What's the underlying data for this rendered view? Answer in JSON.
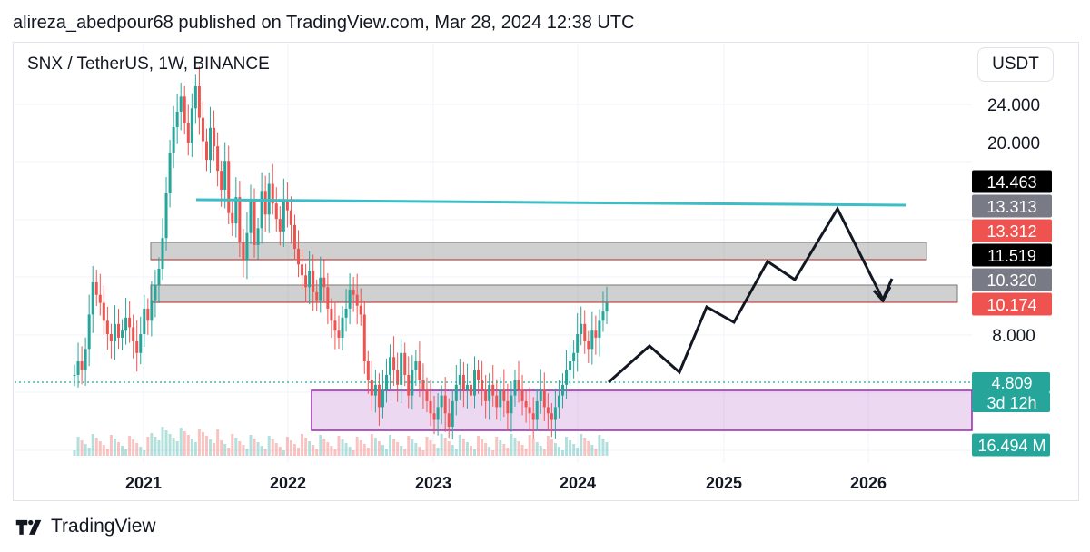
{
  "header": {
    "text": "alireza_abedpour68 published on TradingView.com, Mar 28, 2024 12:38 UTC"
  },
  "symbol": {
    "text": "SNX / TetherUS, 1W, BINANCE"
  },
  "currency": {
    "label": "USDT"
  },
  "footer": {
    "brand": "TradingView",
    "logo_icon": "tradingview-logo-icon"
  },
  "colors": {
    "up": "#26a69a",
    "down": "#ef5350",
    "teal_line": "#3dbdc6",
    "purple_zone": "#9c27b0",
    "grey_zone": "#9e9e9e",
    "projection": "#131722"
  },
  "chart_data": {
    "type": "candlestick",
    "y_scale": "log",
    "ylim": [
      4.0,
      30.0
    ],
    "y_ticks": [
      "24.000",
      "20.000",
      "8.000"
    ],
    "y_tick_values": [
      24,
      20,
      8
    ],
    "x_ticks": [
      "2021",
      "2022",
      "2023",
      "2024",
      "2025",
      "2026"
    ],
    "price_labels": [
      {
        "text": "14.463",
        "value": 14.463,
        "bg": "#000000",
        "fg": "#ffffff"
      },
      {
        "text": "13.313",
        "value": 13.313,
        "bg": "#787b86",
        "fg": "#ffffff"
      },
      {
        "text": "13.312",
        "value": 13.312,
        "bg": "#ef5350",
        "fg": "#ffffff"
      },
      {
        "text": "11.519",
        "value": 11.519,
        "bg": "#000000",
        "fg": "#ffffff"
      },
      {
        "text": "10.320",
        "value": 10.32,
        "bg": "#787b86",
        "fg": "#ffffff"
      },
      {
        "text": "10.174",
        "value": 10.174,
        "bg": "#ef5350",
        "fg": "#ffffff"
      },
      {
        "text": "4.809",
        "value": 4.809,
        "bg": "#26a69a",
        "fg": "#ffffff"
      },
      {
        "text": "3d 12h",
        "value": null,
        "bg": "#26a69a",
        "fg": "#ffffff"
      },
      {
        "text": "16.494 M",
        "value": null,
        "bg": "#26a69a",
        "fg": "#ffffff"
      }
    ],
    "current_price": 4.809,
    "resistance_line": {
      "value": 13.5,
      "color": "#3dbdc6"
    },
    "zones": [
      {
        "name": "upper-supply",
        "low": 11.5,
        "high": 12.3,
        "color": "#9e9e9e"
      },
      {
        "name": "lower-supply",
        "low": 9.8,
        "high": 10.5,
        "color": "#9e9e9e"
      },
      {
        "name": "accumulation",
        "low": 3.5,
        "high": 4.7,
        "color": "#9c27b0"
      }
    ],
    "projection_path": [
      [
        "2024-03",
        4.8
      ],
      [
        "2024-06",
        6.3
      ],
      [
        "2024-09",
        5.2
      ],
      [
        "2024-12",
        8.9
      ],
      [
        "2025-03",
        7.6
      ],
      [
        "2025-06",
        12.4
      ],
      [
        "2025-09",
        11.3
      ],
      [
        "2025-12",
        14.0
      ],
      [
        "2026-03",
        10.2
      ],
      [
        "2026-04",
        11.2
      ]
    ],
    "candles_close": [
      2.8,
      3.1,
      2.9,
      3.4,
      4.4,
      5.6,
      5.1,
      4.8,
      4.2,
      3.8,
      3.6,
      4.1,
      3.7,
      3.9,
      4.3,
      4.0,
      3.6,
      3.3,
      3.8,
      4.6,
      4.2,
      4.9,
      5.5,
      6.2,
      7.8,
      10.9,
      14.8,
      17.9,
      20.1,
      22.5,
      18.4,
      15.9,
      20.6,
      24.3,
      19.2,
      16.1,
      14.0,
      17.8,
      15.5,
      12.9,
      11.2,
      13.9,
      9.4,
      8.7,
      10.6,
      7.6,
      6.6,
      8.1,
      10.2,
      7.4,
      8.4,
      11.1,
      9.3,
      11.7,
      10.1,
      9.0,
      8.2,
      10.4,
      9.6,
      8.6,
      7.2,
      6.4,
      5.9,
      5.4,
      6.1,
      5.2,
      4.9,
      5.8,
      5.4,
      4.6,
      4.2,
      3.9,
      3.7,
      4.3,
      4.6,
      5.3,
      5.1,
      4.7,
      4.4,
      3.1,
      2.7,
      2.4,
      2.6,
      2.2,
      2.5,
      2.8,
      3.2,
      2.9,
      2.6,
      3.3,
      2.8,
      2.4,
      2.9,
      3.1,
      2.7,
      2.5,
      2.3,
      2.1,
      2.0,
      2.2,
      2.4,
      2.1,
      1.9,
      2.3,
      2.6,
      2.8,
      2.5,
      2.6,
      2.4,
      2.9,
      2.7,
      2.5,
      2.3,
      2.6,
      2.4,
      2.2,
      2.5,
      2.3,
      2.1,
      2.4,
      2.7,
      2.5,
      2.3,
      2.2,
      2.1,
      2.0,
      2.3,
      2.5,
      2.2,
      2.1,
      2.0,
      2.2,
      2.4,
      2.6,
      2.9,
      3.1,
      3.3,
      3.8,
      4.1,
      3.6,
      3.4,
      3.9,
      3.7,
      4.2,
      4.5,
      4.8
    ]
  }
}
